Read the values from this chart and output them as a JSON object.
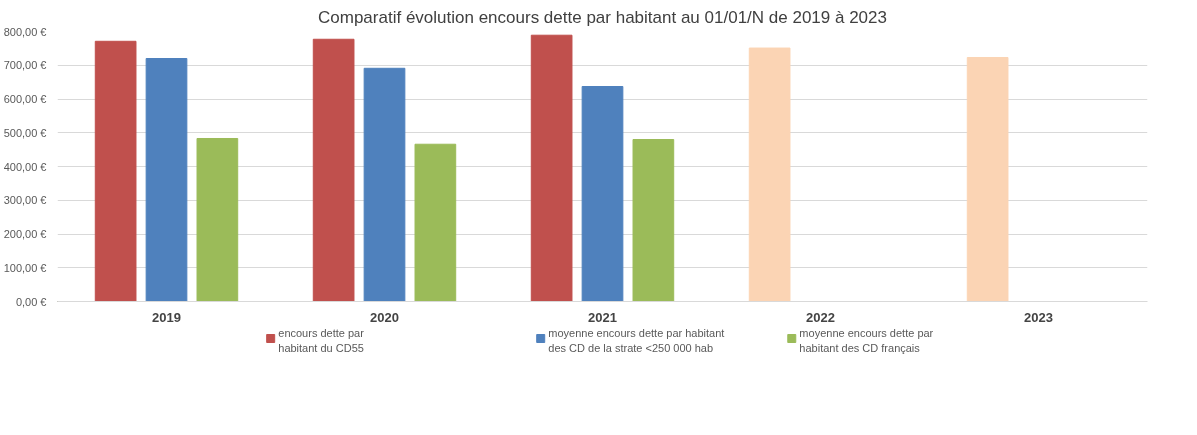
{
  "chart_data": {
    "type": "bar",
    "title": "Comparatif évolution encours dette par habitant au 01/01/N de 2019 à 2023",
    "categories": [
      "2019",
      "2020",
      "2021",
      "2022",
      "2023"
    ],
    "series": [
      {
        "name": "encours dette par habitant du CD55",
        "color": "#c0504d",
        "colors": [
          "#c0504d",
          "#c0504d",
          "#c0504d",
          "#fbd4b4",
          "#fbd4b4"
        ],
        "values": [
          771,
          777,
          789,
          751,
          723
        ]
      },
      {
        "name": "moyenne encours dette par habitant des CD de la strate <250 000 hab",
        "color": "#4f81bd",
        "values": [
          720,
          691,
          637,
          null,
          null
        ]
      },
      {
        "name": "moyenne encours dette par habitant des CD français",
        "color": "#9bbb59",
        "values": [
          483,
          466,
          480,
          null,
          null
        ]
      }
    ],
    "ylim": [
      0,
      800
    ],
    "yticks": [
      {
        "value": 0,
        "label": "0,00 €"
      },
      {
        "value": 100,
        "label": "100,00 €"
      },
      {
        "value": 200,
        "label": "200,00 €"
      },
      {
        "value": 300,
        "label": "300,00 €"
      },
      {
        "value": 400,
        "label": "400,00 €"
      },
      {
        "value": 500,
        "label": "500,00 €"
      },
      {
        "value": 600,
        "label": "600,00 €"
      },
      {
        "value": 700,
        "label": "700,00 €"
      },
      {
        "value": 800,
        "label": "800,00 €"
      }
    ],
    "grid": "y",
    "legend": "bottom"
  }
}
